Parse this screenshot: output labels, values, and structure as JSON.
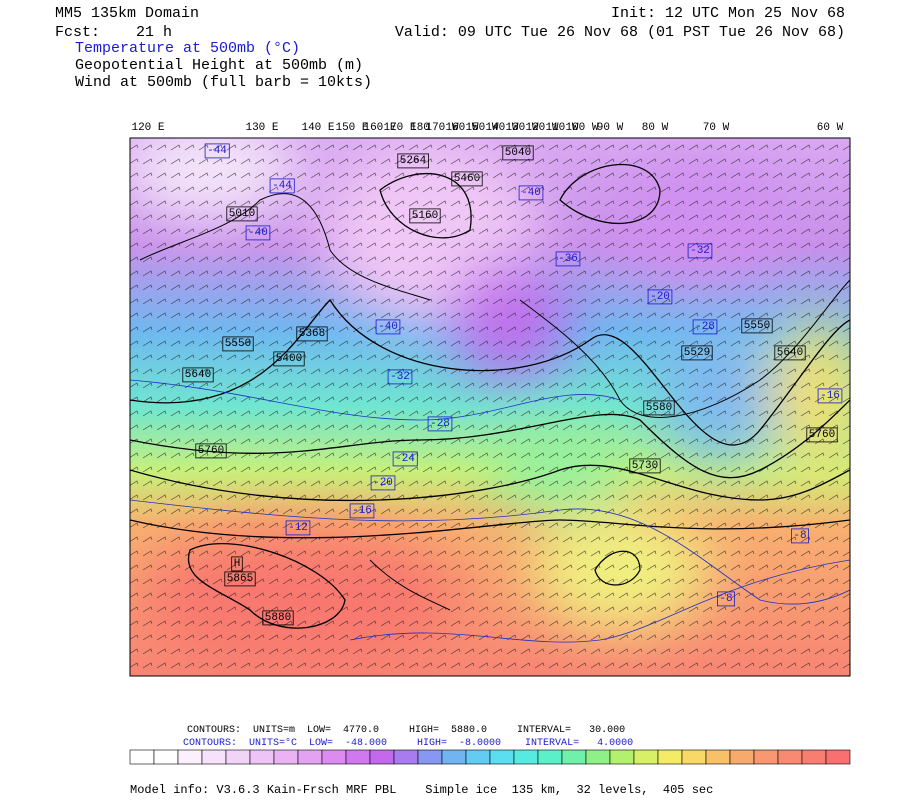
{
  "header": {
    "domain": "MM5 135km Domain",
    "forecast": "Fcst:    21 h",
    "fields": [
      "Temperature at 500mb (°C)",
      "Geopotential Height at 500mb (m)",
      "Wind at 500mb (full barb = 10kts)"
    ],
    "init": "Init: 12 UTC Mon 25 Nov 68",
    "valid": "Valid: 09 UTC Tue 26 Nov 68 (01 PST Tue 26 Nov 68)"
  },
  "map": {
    "longitude_labels": [
      "120 E",
      "130 E",
      "140 E",
      "150 E",
      "160 E",
      "170 E",
      "180",
      "170 W",
      "160 W",
      "150 W",
      "140 W",
      "130 W",
      "120 W",
      "110 W",
      "100 W",
      "90 W",
      "80 W",
      "70 W",
      "60 W"
    ],
    "height_labels": [
      "5264",
      "5040",
      "5460",
      "5160",
      "5010",
      "5550",
      "5368",
      "5400",
      "5640",
      "5760",
      "H",
      "5865",
      "5880",
      "5730",
      "5529",
      "5550",
      "5640",
      "5580",
      "5760"
    ],
    "temperature_labels": [
      "-44",
      "-44",
      "-40",
      "-40",
      "-40",
      "-36",
      "-32",
      "-28",
      "-24",
      "-20",
      "-16",
      "-12",
      "-32",
      "-28",
      "-20",
      "-16",
      "-8",
      "-8"
    ]
  },
  "footer": {
    "height_contours": "CONTOURS:  UNITS=m  LOW=  4770.0     HIGH=  5880.0     INTERVAL=   30.000",
    "temperature_contours": "CONTOURS:  UNITS=°C  LOW=  -48.000     HIGH=  -8.0000    INTERVAL=   4.0000",
    "model_info": "Model info: V3.6.3 Kain-Frsch MRF PBL    Simple ice  135 km,  32 levels,  405 sec"
  }
}
